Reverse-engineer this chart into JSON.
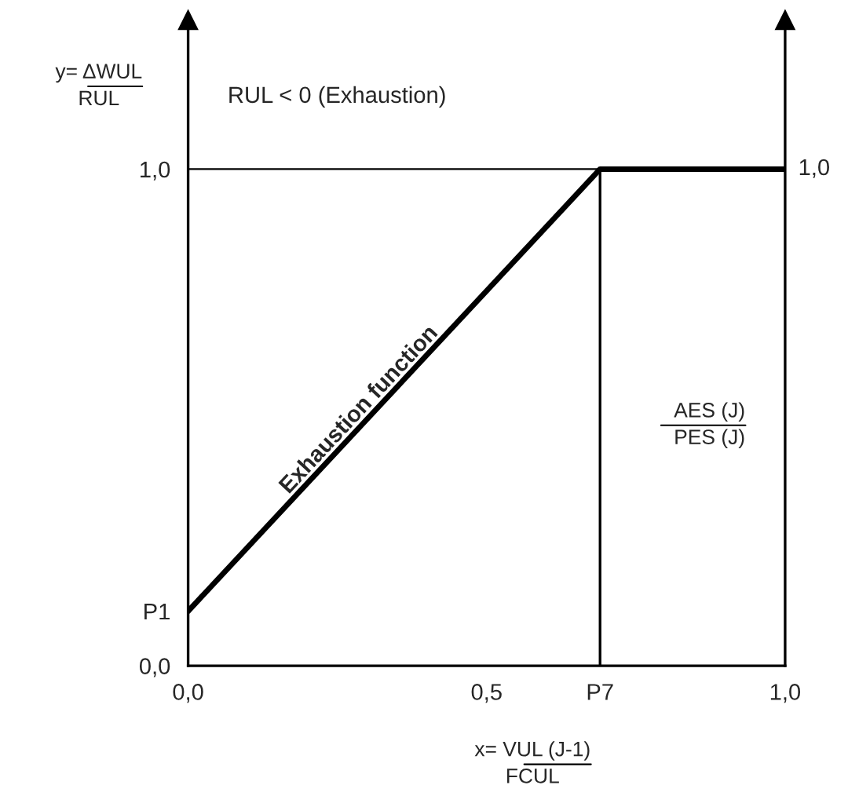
{
  "chart_data": {
    "type": "line",
    "xlabel": "x= VUL (J-1)\nFCUL",
    "ylabel": "y= ΔWUL\nRUL",
    "x": [
      0,
      0.69,
      1.0
    ],
    "series": [
      {
        "color": "#000000",
        "values": [
          0.11,
          1.0,
          1.0
        ]
      }
    ],
    "xlim": [
      0,
      1.0
    ],
    "ylim": [
      0,
      1.3
    ],
    "xticks": [
      {
        "value": 0,
        "label": "0,0"
      },
      {
        "value": 0.5,
        "label": "0,5"
      },
      {
        "value": 0.69,
        "label": "P7"
      },
      {
        "value": 1.0,
        "label": "1,0"
      }
    ],
    "yticks": [
      {
        "value": 0,
        "label": "0,0"
      },
      {
        "value": 0.11,
        "label": "P1"
      },
      {
        "value": 1.0,
        "label": "1,0"
      }
    ],
    "ref_lines": [
      {
        "axis": "y",
        "value": 1.0,
        "color": "#000000"
      },
      {
        "axis": "x",
        "value": 0.69,
        "color": "#000000"
      }
    ],
    "annotations": [
      "RUL < 0 (Exhaustion)",
      {
        "text": "Exhaustion function",
        "x": 0.3,
        "y": 0.5
      },
      "AES (J)\nPES (J)",
      {
        "text": "1,0",
        "x": 1.0,
        "y": 1.0
      }
    ],
    "grid": false,
    "legend": false,
    "marker": "none",
    "line_style": "solid"
  }
}
